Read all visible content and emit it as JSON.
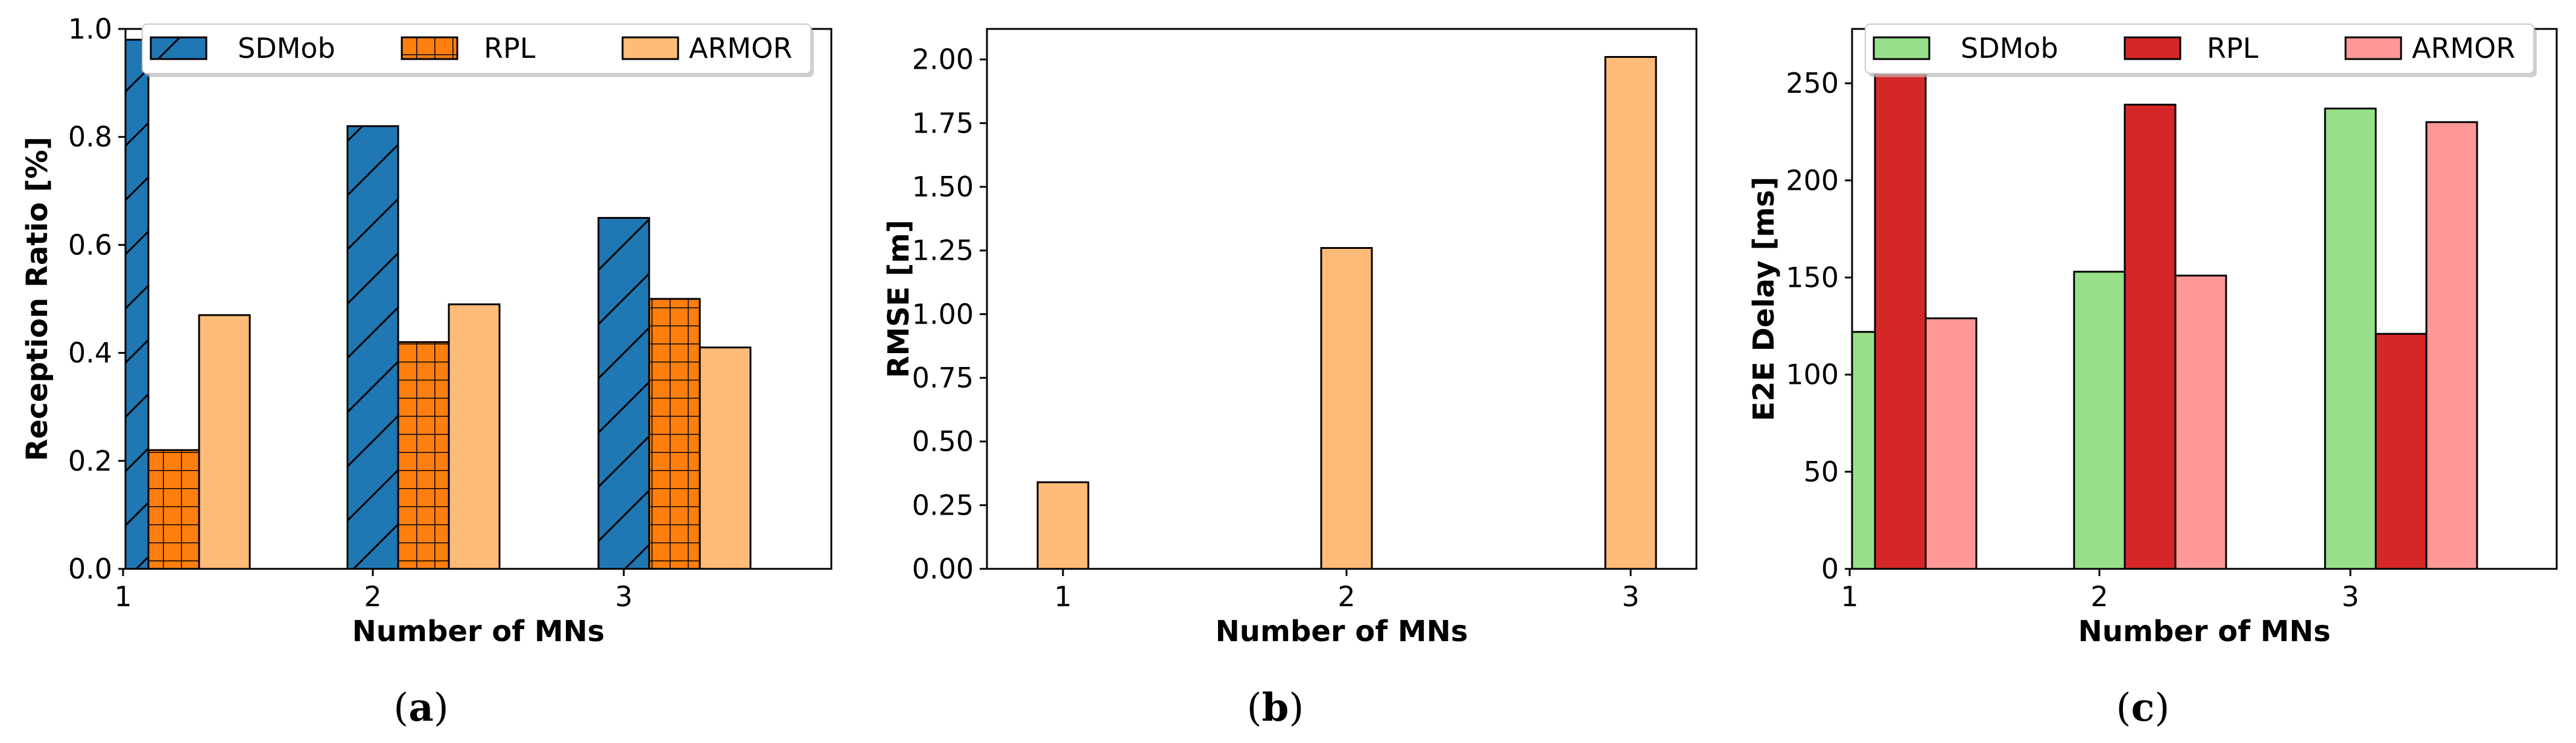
{
  "chart_data": [
    {
      "type": "bar",
      "caption": "a",
      "categories": [
        "1",
        "2",
        "3"
      ],
      "xlabel": "Number of MNs",
      "ylabel": "Reception Ratio [%]",
      "ylim": [
        0,
        1.0
      ],
      "yticks": [
        "0.0",
        "0.2",
        "0.4",
        "0.6",
        "0.8",
        "1.0"
      ],
      "legend_position": "top-right",
      "series": [
        {
          "name": "SDMob",
          "values": [
            0.98,
            0.82,
            0.65
          ],
          "color": "#1f77b4",
          "hatch": "diagonal"
        },
        {
          "name": "RPL",
          "values": [
            0.22,
            0.42,
            0.5
          ],
          "color": "#ff7f0e",
          "hatch": "grid"
        },
        {
          "name": "ARMOR",
          "values": [
            0.47,
            0.49,
            0.41
          ],
          "color": "#ffbb78",
          "hatch": "none"
        }
      ]
    },
    {
      "type": "bar",
      "caption": "b",
      "categories": [
        "1",
        "2",
        "3"
      ],
      "xlabel": "Number of MNs",
      "ylabel": "RMSE [m]",
      "ylim": [
        0,
        2.12
      ],
      "yticks": [
        "0.00",
        "0.25",
        "0.50",
        "0.75",
        "1.00",
        "1.25",
        "1.50",
        "1.75",
        "2.00"
      ],
      "series": [
        {
          "name": "ARMOR",
          "values": [
            0.34,
            1.26,
            2.01
          ],
          "color": "#ffbb78",
          "hatch": "none"
        }
      ]
    },
    {
      "type": "bar",
      "caption": "c",
      "categories": [
        "1",
        "2",
        "3"
      ],
      "xlabel": "Number of MNs",
      "ylabel": "E2E Delay [ms]",
      "ylim": [
        0,
        278
      ],
      "yticks": [
        "0",
        "50",
        "100",
        "150",
        "200",
        "250"
      ],
      "legend_position": "top-right",
      "series": [
        {
          "name": "SDMob",
          "values": [
            122,
            153,
            237
          ],
          "color": "#98df8a",
          "hatch": "none"
        },
        {
          "name": "RPL",
          "values": [
            265,
            239,
            121
          ],
          "color": "#d62728",
          "hatch": "none"
        },
        {
          "name": "ARMOR",
          "values": [
            129,
            151,
            230
          ],
          "color": "#ff9896",
          "hatch": "none"
        }
      ]
    }
  ]
}
